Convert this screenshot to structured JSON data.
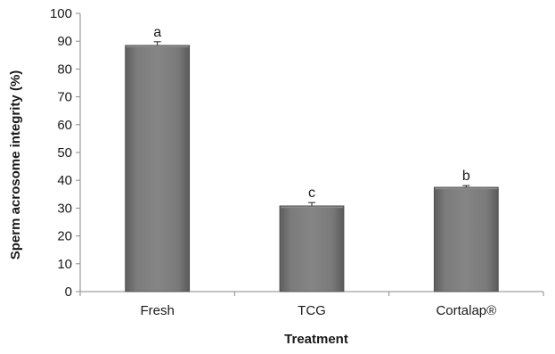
{
  "chart_data": {
    "type": "bar",
    "categories": [
      "Fresh",
      "TCG",
      "Cortalap®"
    ],
    "values": [
      88.5,
      30.8,
      37.5
    ],
    "errors": [
      1.3,
      1.2,
      0.6
    ],
    "significance_letters": [
      "a",
      "c",
      "b"
    ],
    "xlabel": "Treatment",
    "ylabel": "Sperm acrosome integrity (%)",
    "ylim": [
      0,
      100
    ],
    "yticks": [
      0,
      10,
      20,
      30,
      40,
      50,
      60,
      70,
      80,
      90,
      100
    ],
    "grid": false,
    "legend": "none",
    "colors": {
      "bar_fill": "#757575",
      "bar_highlight": "#8c8c8c",
      "bar_edge": "#4a4a4a",
      "axis": "#8a8a8a"
    }
  }
}
